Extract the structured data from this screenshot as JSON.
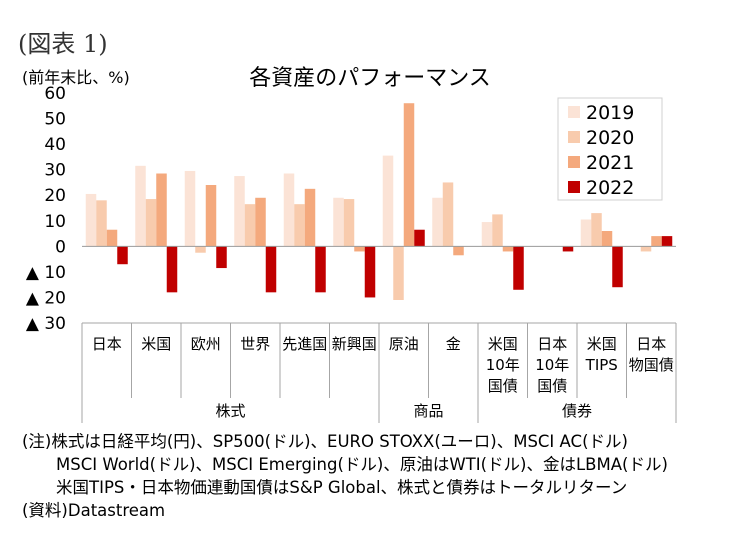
{
  "figure_label": "(図表 1)",
  "unit_label": "(前年末比、%)",
  "colors": {
    "2019": "#fbe3d6",
    "2020": "#f8cbad",
    "2021": "#f4a97d",
    "2022": "#c00000"
  },
  "chart_data": {
    "type": "bar",
    "title": "各資産のパフォーマンス",
    "ylabel": "(前年末比、%)",
    "ylim": [
      -30,
      60
    ],
    "yticks": [
      60,
      50,
      40,
      30,
      20,
      10,
      0,
      -10,
      -20,
      -30
    ],
    "ytick_labels": [
      "60",
      "50",
      "40",
      "30",
      "20",
      "10",
      "0",
      "▲ 10",
      "▲ 20",
      "▲ 30"
    ],
    "grid": false,
    "legend_position": "top-right",
    "categories": [
      [
        "日本"
      ],
      [
        "米国"
      ],
      [
        "欧州"
      ],
      [
        "世界"
      ],
      [
        "先進国"
      ],
      [
        "新興国"
      ],
      [
        "原油"
      ],
      [
        "金"
      ],
      [
        "米国",
        "10年",
        "国債"
      ],
      [
        "日本",
        "10年",
        "国債"
      ],
      [
        "米国",
        "TIPS"
      ],
      [
        "日本",
        "物国債"
      ]
    ],
    "groups": [
      {
        "label": "株式",
        "from": 0,
        "to": 5
      },
      {
        "label": "商品",
        "from": 6,
        "to": 7
      },
      {
        "label": "債券",
        "from": 8,
        "to": 11
      }
    ],
    "series": [
      {
        "name": "2019",
        "values": [
          20.5,
          31.5,
          29.5,
          27.5,
          28.5,
          19,
          35.5,
          19,
          9.5,
          0,
          10.5,
          0
        ]
      },
      {
        "name": "2020",
        "values": [
          18,
          18.5,
          -2.5,
          16.5,
          16.5,
          18.5,
          -21,
          25,
          12.5,
          0,
          13,
          -2
        ]
      },
      {
        "name": "2021",
        "values": [
          6.5,
          28.5,
          24,
          19,
          22.5,
          -2,
          56,
          -3.5,
          -2,
          0,
          6,
          4
        ]
      },
      {
        "name": "2022",
        "values": [
          -7,
          -18,
          -8.5,
          -18,
          -18,
          -20,
          6.5,
          0,
          -17,
          -2,
          -16,
          4
        ]
      }
    ]
  },
  "notes": [
    "(注)株式は日経平均(円)、SP500(ドル)、EURO STOXX(ユーロ)、MSCI AC(ドル)",
    "MSCI World(ドル)、MSCI Emerging(ドル)、原油はWTI(ドル)、金はLBMA(ドル)",
    "米国TIPS・日本物価連動国債はS&P Global、株式と債券はトータルリターン",
    "(資料)Datastream"
  ]
}
